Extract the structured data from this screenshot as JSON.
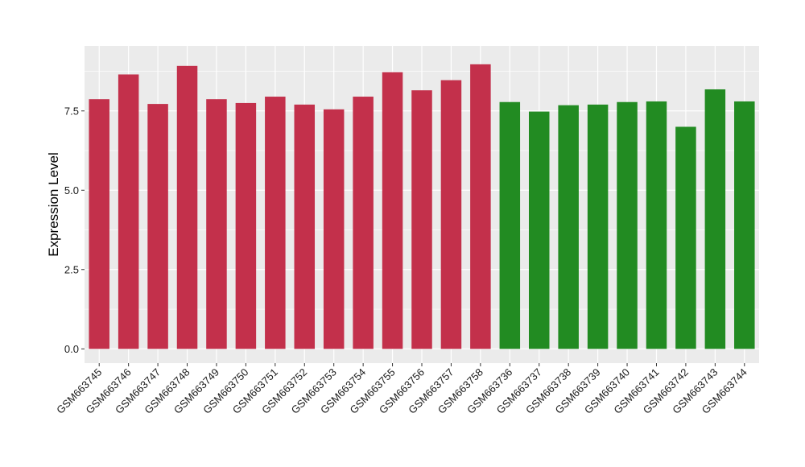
{
  "chart_data": {
    "type": "bar",
    "title": "",
    "xlabel": "",
    "ylabel": "Expression Level",
    "ylim": [
      -0.45,
      9.55
    ],
    "yticks": [
      0.0,
      2.5,
      5.0,
      7.5
    ],
    "ytick_labels": [
      "0.0",
      "2.5",
      "5.0",
      "7.5"
    ],
    "grid": true,
    "legend": "none",
    "colors": {
      "group_1": "#c3304b",
      "group_2": "#228b22",
      "panel_bg": "#ebebeb",
      "grid": "#ffffff"
    },
    "categories": [
      "GSM663745",
      "GSM663746",
      "GSM663747",
      "GSM663748",
      "GSM663749",
      "GSM663750",
      "GSM663751",
      "GSM663752",
      "GSM663753",
      "GSM663754",
      "GSM663755",
      "GSM663756",
      "GSM663757",
      "GSM663758",
      "GSM663736",
      "GSM663737",
      "GSM663738",
      "GSM663739",
      "GSM663740",
      "GSM663741",
      "GSM663742",
      "GSM663743",
      "GSM663744"
    ],
    "values": [
      7.87,
      8.65,
      7.72,
      8.92,
      7.87,
      7.75,
      7.95,
      7.7,
      7.55,
      7.95,
      8.72,
      8.15,
      8.47,
      8.97,
      7.78,
      7.48,
      7.68,
      7.7,
      7.78,
      7.8,
      7.0,
      8.18,
      7.8
    ],
    "bar_groups": [
      "group_1",
      "group_1",
      "group_1",
      "group_1",
      "group_1",
      "group_1",
      "group_1",
      "group_1",
      "group_1",
      "group_1",
      "group_1",
      "group_1",
      "group_1",
      "group_1",
      "group_2",
      "group_2",
      "group_2",
      "group_2",
      "group_2",
      "group_2",
      "group_2",
      "group_2",
      "group_2"
    ]
  }
}
